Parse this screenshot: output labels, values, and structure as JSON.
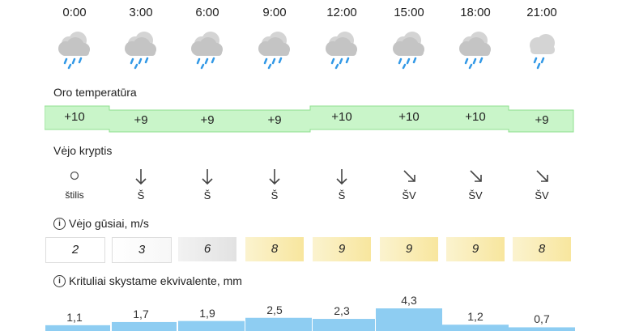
{
  "times": [
    "0:00",
    "3:00",
    "6:00",
    "9:00",
    "12:00",
    "15:00",
    "18:00",
    "21:00"
  ],
  "weather_icons": [
    "cloud-rain-icon",
    "cloud-rain-icon",
    "cloud-rain-icon",
    "cloud-rain-icon",
    "cloud-rain-icon",
    "cloud-rain-icon",
    "cloud-rain-icon",
    "cloud-rain-icon"
  ],
  "temperature": {
    "label": "Oro temperatūra",
    "values": [
      "+10",
      "+9",
      "+9",
      "+9",
      "+10",
      "+10",
      "+10",
      "+9"
    ],
    "numeric": [
      10,
      9,
      9,
      9,
      10,
      10,
      10,
      9
    ]
  },
  "wind_direction": {
    "label": "Vėjo kryptis",
    "labels": [
      "štilis",
      "Š",
      "Š",
      "Š",
      "Š",
      "ŠV",
      "ŠV",
      "ŠV"
    ],
    "icons": [
      "calm-circle-icon",
      "arrow-down-icon",
      "arrow-down-icon",
      "arrow-down-icon",
      "arrow-down-icon",
      "arrow-down-right-icon",
      "arrow-down-right-icon",
      "arrow-down-right-icon"
    ]
  },
  "wind_gusts": {
    "label": "Vėjo gūsiai, m/s",
    "info_glyph": "i",
    "values": [
      "2",
      "3",
      "6",
      "8",
      "9",
      "9",
      "9",
      "8"
    ]
  },
  "precipitation": {
    "label": "Krituliai skystame ekvivalente, mm",
    "info_glyph": "i",
    "values": [
      "1,1",
      "1,7",
      "1,9",
      "2,5",
      "2,3",
      "4,3",
      "1,2",
      "0,7"
    ],
    "numeric": [
      1.1,
      1.7,
      1.9,
      2.5,
      2.3,
      4.3,
      1.2,
      0.7
    ]
  },
  "colors": {
    "temp_fill": "#ccf5cc",
    "temp_border": "#99e699",
    "precip_fill": "#8ecdf2",
    "gust_low": "#ffffff",
    "gust_mid": "#e6e6e6",
    "gust_high": "#fbefb8",
    "cloud": "#cccccc",
    "rain": "#3399e6"
  }
}
